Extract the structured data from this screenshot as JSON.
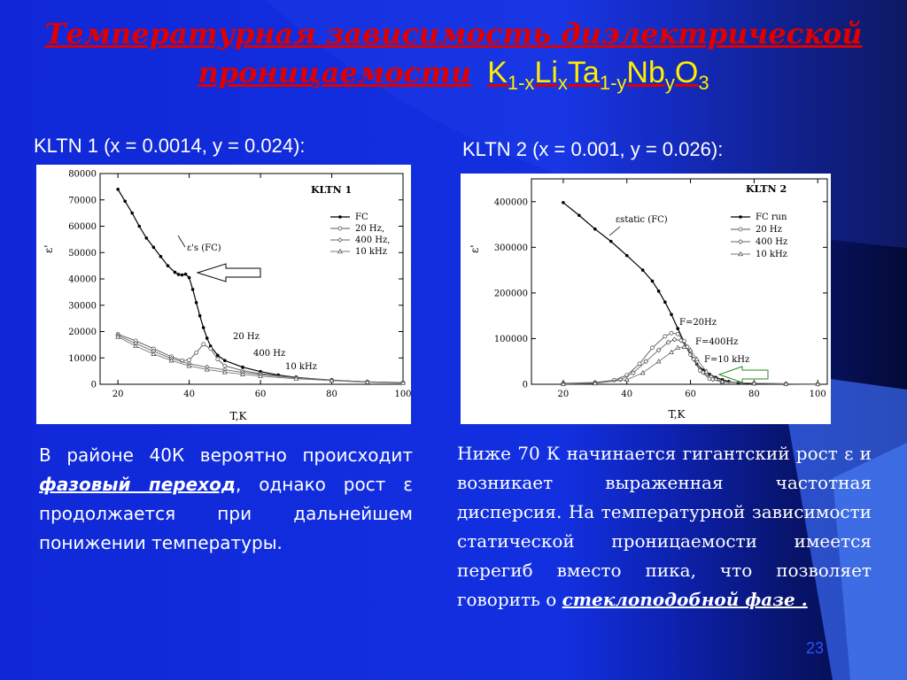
{
  "slide": {
    "title_line1": "Температурная зависимость диэлектрической",
    "title_line2": "проницаемости",
    "formula": {
      "p1": "K",
      "s1": "1-x",
      "p2": "Li",
      "s2": "x",
      "p3": "Ta",
      "s3": "1-y",
      "p4": "Nb",
      "s4": "y",
      "p5": "O",
      "s5": "3"
    },
    "page_number": "23",
    "colors": {
      "background": "#1230e0",
      "title": "#e00000",
      "formula": "#ffee00",
      "text": "#ffffff"
    }
  },
  "left": {
    "subtitle": "KLTN 1 (x = 0.0014, y = 0.024):",
    "para_a": "В районе 40К вероятно происходит ",
    "para_emph": "фазовый переход",
    "para_b": ", однако рост ε продолжается при дальнейшем понижении температуры."
  },
  "right": {
    "subtitle": "KLTN 2 (x = 0.001, y = 0.026):",
    "para_a": "Ниже 70 К начинается гигантский рост ε и возникает выраженная частотная дисперсия. На температурной зависимости статической проницаемости имеется перегиб вместо пика, что позволяет говорить о ",
    "para_emph": "стеклоподобной фазе ."
  },
  "chart_data": [
    {
      "type": "scatter",
      "title": "KLTN 1",
      "xlabel": "T,K",
      "ylabel": "ε'",
      "xlim": [
        15,
        100
      ],
      "ylim": [
        0,
        80000
      ],
      "xticks": [
        20,
        40,
        60,
        80,
        100
      ],
      "yticks": [
        0,
        10000,
        20000,
        30000,
        40000,
        50000,
        60000,
        70000,
        80000
      ],
      "legend": {
        "position": "top-right",
        "entries": [
          "FC",
          "20 Hz,",
          "400 Hz,",
          "10 kHz"
        ]
      },
      "annotations": [
        "ε's (FC)",
        "20 Hz",
        "400 Hz",
        "10 kHz"
      ],
      "series": [
        {
          "name": "FC",
          "x": [
            20,
            22,
            24,
            26,
            28,
            30,
            32,
            34,
            36,
            37,
            38,
            39,
            40,
            41,
            42,
            43,
            44,
            45,
            46,
            48,
            50,
            55,
            60,
            65,
            70,
            80,
            90,
            100
          ],
          "y": [
            74000,
            69500,
            65000,
            60000,
            55500,
            52000,
            48500,
            45000,
            42500,
            41700,
            41500,
            41800,
            40500,
            36000,
            31000,
            26000,
            21500,
            17500,
            14500,
            11000,
            9000,
            6500,
            4800,
            3500,
            2600,
            1500,
            900,
            600
          ]
        },
        {
          "name": "20 Hz",
          "x": [
            20,
            25,
            30,
            35,
            38,
            40,
            42,
            44,
            46,
            48,
            50,
            55,
            60,
            70,
            80,
            90,
            100
          ],
          "y": [
            19000,
            16500,
            13500,
            10500,
            9000,
            9200,
            12000,
            15200,
            13500,
            9500,
            7000,
            5200,
            4000,
            2600,
            1600,
            900,
            600
          ]
        },
        {
          "name": "400 Hz",
          "x": [
            20,
            25,
            30,
            35,
            40,
            45,
            50,
            55,
            60,
            70,
            80,
            90,
            100
          ],
          "y": [
            18500,
            15500,
            12500,
            9800,
            7800,
            6500,
            5500,
            4500,
            3700,
            2400,
            1500,
            900,
            600
          ]
        },
        {
          "name": "10 kHz",
          "x": [
            20,
            25,
            30,
            35,
            40,
            45,
            50,
            55,
            60,
            70,
            80,
            90,
            100
          ],
          "y": [
            18000,
            14500,
            11500,
            9000,
            7000,
            5600,
            4600,
            3800,
            3100,
            2100,
            1400,
            800,
            500
          ]
        }
      ]
    },
    {
      "type": "scatter",
      "title": "KLTN 2",
      "xlabel": "T,K",
      "ylabel": "ε'",
      "xlim": [
        10,
        103
      ],
      "ylim": [
        0,
        450000
      ],
      "xticks": [
        20,
        40,
        60,
        80,
        100
      ],
      "yticks": [
        0,
        100000,
        200000,
        300000,
        400000
      ],
      "legend": {
        "position": "top-right",
        "entries": [
          "FC run",
          "20 Hz",
          "400 Hz",
          "10 kHz"
        ]
      },
      "annotations": [
        "εstatic (FC)",
        "F=20Hz",
        "F=400Hz",
        "F=10 kHz"
      ],
      "series": [
        {
          "name": "FC run",
          "x": [
            20,
            25,
            30,
            35,
            40,
            45,
            48,
            50,
            52,
            54,
            56,
            58,
            60,
            62,
            64,
            66,
            68,
            70,
            72,
            75,
            80,
            90,
            100
          ],
          "y": [
            398000,
            370000,
            340000,
            313000,
            282000,
            250000,
            226000,
            204000,
            180000,
            153000,
            122000,
            92000,
            64000,
            44000,
            31000,
            22000,
            15000,
            10000,
            6000,
            3000,
            1500,
            800,
            400
          ]
        },
        {
          "name": "20 Hz",
          "x": [
            20,
            30,
            36,
            40,
            44,
            48,
            52,
            54,
            56,
            58,
            60,
            63,
            66,
            70,
            80,
            90,
            100
          ],
          "y": [
            2000,
            4000,
            9000,
            20000,
            45000,
            80000,
            105000,
            112000,
            110000,
            95000,
            65000,
            30000,
            12000,
            5000,
            2000,
            1000,
            500
          ]
        },
        {
          "name": "400 Hz",
          "x": [
            20,
            30,
            38,
            42,
            46,
            50,
            53,
            55,
            57,
            59,
            61,
            64,
            67,
            70,
            80,
            90,
            100
          ],
          "y": [
            1000,
            3000,
            10000,
            25000,
            50000,
            75000,
            92000,
            98000,
            96000,
            82000,
            55000,
            26000,
            11000,
            5000,
            2000,
            1000,
            500
          ]
        },
        {
          "name": "10 kHz",
          "x": [
            20,
            30,
            40,
            45,
            50,
            54,
            56,
            58,
            60,
            62,
            65,
            68,
            70,
            80,
            90,
            100
          ],
          "y": [
            500,
            2000,
            10000,
            25000,
            50000,
            70000,
            80000,
            82000,
            75000,
            55000,
            28000,
            12000,
            6000,
            2000,
            1000,
            500
          ]
        }
      ]
    }
  ]
}
